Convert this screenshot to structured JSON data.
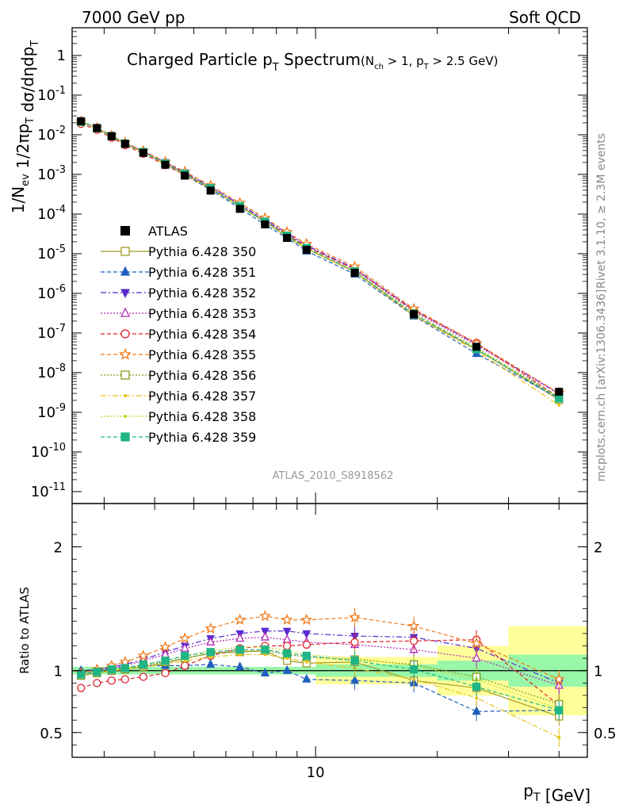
{
  "header": {
    "left": "7000 GeV pp",
    "right": "Soft QCD"
  },
  "plot_title": {
    "main": "Charged Particle p",
    "main_sub": "T",
    "main_tail": " Spectrum",
    "cond_a": "(N",
    "cond_a_sub": "ch",
    "cond_b": " > 1, p",
    "cond_b_sub": "T",
    "cond_c": " > 2.5 GeV)"
  },
  "side_text": {
    "rivet": "Rivet 3.1.10, ≥ 2.3M events",
    "mcplots": "mcplots.cern.ch [arXiv:1306.3436]"
  },
  "analysis_id": "ATLAS_2010_S8918562",
  "ylabel_upper": "1/N_ev 1/2πp_T dσ/dηdp_T",
  "ylabel_lower": "Ratio to ATLAS",
  "xlabel": "p_T  [GeV]",
  "chart_data": {
    "type": "line",
    "title": "Charged Particle pT Spectrum (Nch > 1, pT > 2.5 GeV)",
    "xscale": "log",
    "xlim": [
      2.5,
      47
    ],
    "upper": {
      "yscale": "log",
      "ylim": [
        5e-12,
        5.0
      ],
      "ytick_exponents": [
        -11,
        -10,
        -9,
        -8,
        -7,
        -6,
        -5,
        -4,
        -3,
        -2,
        -1,
        0
      ],
      "ytick_labels": [
        "10^-11",
        "10^-10",
        "10^-9",
        "10^-8",
        "10^-7",
        "10^-6",
        "10^-5",
        "10^-4",
        "10^-3",
        "10^-2",
        "10^-1",
        "1"
      ]
    },
    "lower": {
      "ylim": [
        0.3,
        2.35
      ],
      "yticks": [
        0.5,
        1,
        2
      ],
      "ytick_labels": [
        "0.5",
        "1",
        "2"
      ],
      "xtick_label": "10"
    },
    "x": [
      2.63,
      2.88,
      3.13,
      3.38,
      3.75,
      4.25,
      4.75,
      5.5,
      6.5,
      7.5,
      8.5,
      9.5,
      12.5,
      17.5,
      25,
      40
    ],
    "data_band_edges": [
      2.5,
      10,
      20,
      30,
      47
    ],
    "data_band_inner": [
      0.03,
      0.05,
      0.08,
      0.13
    ],
    "data_band_outer": [
      0.03,
      0.11,
      0.2,
      0.36
    ],
    "atlas": {
      "name": "ATLAS",
      "values": [
        0.022,
        0.0148,
        0.0092,
        0.0059,
        0.0035,
        0.00175,
        0.00093,
        0.00039,
        0.000135,
        5.5e-05,
        2.5e-05,
        1.25e-05,
        3.3e-06,
        3e-07,
        4.5e-08,
        3.3e-09
      ]
    },
    "series": [
      {
        "name": "Pythia 6.428 350",
        "color": "#a09a2a",
        "marker": "square-open",
        "dash": "solid",
        "ratio": [
          0.96,
          0.98,
          1.0,
          1.01,
          1.03,
          1.06,
          1.1,
          1.14,
          1.15,
          1.16,
          1.08,
          1.06,
          1.07,
          0.92,
          0.86,
          0.63
        ]
      },
      {
        "name": "Pythia 6.428 351",
        "color": "#1f5fbf",
        "marker": "triangle-up",
        "dash": "dashed",
        "ratio": [
          1.0,
          1.01,
          1.02,
          1.03,
          1.04,
          1.04,
          1.04,
          1.05,
          1.03,
          0.98,
          1.0,
          0.93,
          0.92,
          0.9,
          0.67,
          0.68
        ]
      },
      {
        "name": "Pythia 6.428 352",
        "color": "#5a2bd0",
        "marker": "triangle-down",
        "dash": "dashdot",
        "ratio": [
          0.98,
          1.0,
          1.03,
          1.05,
          1.09,
          1.15,
          1.2,
          1.26,
          1.3,
          1.32,
          1.32,
          1.3,
          1.28,
          1.27,
          1.18,
          0.9
        ]
      },
      {
        "name": "Pythia 6.428 353",
        "color": "#b02ab5",
        "marker": "triangle-up-open",
        "dash": "dotted",
        "ratio": [
          0.97,
          0.99,
          1.02,
          1.04,
          1.08,
          1.13,
          1.18,
          1.23,
          1.26,
          1.27,
          1.25,
          1.23,
          1.21,
          1.17,
          1.1,
          0.88
        ]
      },
      {
        "name": "Pythia 6.428 354",
        "color": "#e0202a",
        "marker": "circle-open",
        "dash": "dashed",
        "ratio": [
          0.86,
          0.9,
          0.92,
          0.93,
          0.95,
          0.98,
          1.04,
          1.12,
          1.18,
          1.2,
          1.2,
          1.21,
          1.23,
          1.24,
          1.25,
          0.72
        ]
      },
      {
        "name": "Pythia 6.428 355",
        "color": "#f07a1a",
        "marker": "star",
        "dash": "dashed",
        "ratio": [
          0.98,
          1.01,
          1.04,
          1.07,
          1.12,
          1.19,
          1.26,
          1.34,
          1.41,
          1.44,
          1.41,
          1.41,
          1.43,
          1.36,
          1.22,
          0.93
        ]
      },
      {
        "name": "Pythia 6.428 356",
        "color": "#7f9a1a",
        "marker": "square-open",
        "dash": "dotted",
        "ratio": [
          0.96,
          0.98,
          1.0,
          1.01,
          1.04,
          1.07,
          1.1,
          1.14,
          1.16,
          1.16,
          1.13,
          1.11,
          1.09,
          1.05,
          0.95,
          0.73
        ]
      },
      {
        "name": "Pythia 6.428 357",
        "color": "#e6c21a",
        "marker": "dot",
        "dash": "dashdot",
        "ratio": [
          0.96,
          0.98,
          1.0,
          1.01,
          1.03,
          1.05,
          1.08,
          1.11,
          1.13,
          1.13,
          1.1,
          1.07,
          1.02,
          0.93,
          0.78,
          0.46
        ]
      },
      {
        "name": "Pythia 6.428 358",
        "color": "#c8d42a",
        "marker": "dot",
        "dash": "dotted",
        "ratio": [
          0.97,
          0.99,
          1.01,
          1.02,
          1.05,
          1.08,
          1.12,
          1.16,
          1.19,
          1.19,
          1.16,
          1.13,
          1.1,
          1.04,
          0.93,
          0.69
        ]
      },
      {
        "name": "Pythia 6.428 359",
        "color": "#20b585",
        "marker": "square",
        "dash": "dashed",
        "ratio": [
          0.97,
          0.99,
          1.01,
          1.02,
          1.05,
          1.08,
          1.12,
          1.15,
          1.17,
          1.17,
          1.14,
          1.12,
          1.08,
          1.01,
          0.87,
          0.68
        ]
      }
    ]
  }
}
